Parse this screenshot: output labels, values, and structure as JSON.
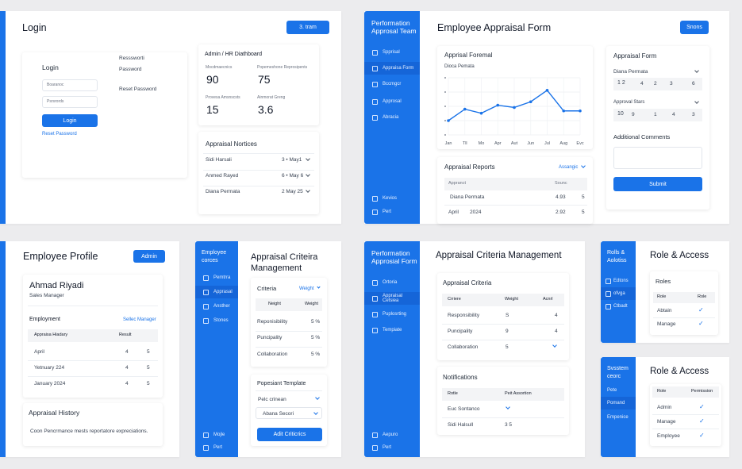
{
  "login": {
    "title": "Login",
    "top_btn": "3. tram",
    "form_title": "Login",
    "user_ph": "Boaranoc",
    "pass_ph": "Psrsrords",
    "login_btn": "Login",
    "reset_link": "Reset Password",
    "side1": "Resssworti",
    "side2": "Password",
    "side3": "Reset Password",
    "dash": {
      "title": "Admin / HR Diathboard",
      "s1l": "Mocdmaecnics",
      "s1v": "90",
      "s2l": "Popemeshone Reprosipents",
      "s2v": "75",
      "s3l": "Provesa Amsnscsts",
      "s3v": "15",
      "s4l": "Ainmorat Greng",
      "s4v": "3.6"
    },
    "notices": {
      "title": "Appraisal Nortices",
      "rows": [
        {
          "name": "Sidi Harsali",
          "date": "3 • May1"
        },
        {
          "name": "Anmed Rayed",
          "date": "6 • May 6"
        },
        {
          "name": "Diana Permata",
          "date": "2 May 25"
        }
      ]
    }
  },
  "appraisal": {
    "side_title": "Performation Approsal Team",
    "nav": [
      "Spprisal",
      "Appraisa Form",
      "Bccmgcr",
      "Approsal",
      "Abracia",
      "Kevios",
      "Pert"
    ],
    "title": "Employee Appraisal Form",
    "top_btn": "Snons",
    "chart_card": {
      "title": "Apprisal Foremal",
      "subtitle": "Dioca Pemata"
    },
    "reports": {
      "title": "Appraisal Reports",
      "filter": "Assangic",
      "col1": "Appranct",
      "col2": "Sounc",
      "rows": [
        {
          "a": "Diana Permata",
          "b": "4.93",
          "c": "5"
        },
        {
          "a": "April",
          "b2": "2024",
          "b": "2.92",
          "c": "5"
        }
      ]
    },
    "form": {
      "title": "Appraisal Form",
      "f1": "Diana Permata",
      "f1v": [
        "1 2",
        "4",
        "2",
        "3",
        "6"
      ],
      "f2": "Approval Stars",
      "f2v": [
        "10",
        "9",
        "1",
        "4",
        "3"
      ],
      "comments": "Additional Comments",
      "submit": "Submit"
    }
  },
  "chart_data": {
    "type": "line",
    "categories": [
      "Jan",
      "Tll",
      "Mo",
      "Apr",
      "Aut",
      "Jun",
      "Jul",
      "Aug",
      "Evc"
    ],
    "values": [
      25,
      45,
      38,
      52,
      48,
      58,
      78,
      42,
      42
    ],
    "ylim": [
      0,
      100
    ],
    "color": "#1a73e8",
    "grid": true
  },
  "profile": {
    "title": "Employee Profile",
    "admin_btn": "Admin",
    "name": "Ahmad Riyadi",
    "role": "Sales Manager",
    "employment": "Employment",
    "emp_link": "Sellec Manager",
    "col1": "Appraisa Hiadary",
    "col2": "Result",
    "rows": [
      {
        "a": "April",
        "b": "4",
        "c": "5"
      },
      {
        "a": "Yetnuary 224",
        "b": "4",
        "c": "5"
      },
      {
        "a": "January 2024",
        "b": "4",
        "c": "5"
      }
    ],
    "history": "Appraisal History",
    "history_text": "Coon Pencrmance mests reportatore expreciations."
  },
  "criteria": {
    "side_title": "Employee corces",
    "nav": [
      "Pemtrra",
      "Apprasal",
      "Ansther",
      "Stones",
      "Mojle",
      "Pert"
    ],
    "title": "Appraisal Criteira Management",
    "card_title": "Criteria",
    "card_link": "Weight",
    "col1": "Neight",
    "col2": "Weight",
    "rows": [
      {
        "a": "Reponisibility",
        "b": "5 %"
      },
      {
        "a": "Puncipality",
        "b": "5 %"
      },
      {
        "a": "Collaboration",
        "b": "5 %"
      }
    ],
    "tpl_title": "Popesiant Template",
    "tpl1": "Pelc crinean",
    "tpl2": "Abana Secori",
    "add_btn": "Adit Criticrics"
  },
  "management": {
    "side_title": "Performation Approsial Form",
    "nav": [
      "Ortoria",
      "Appraisal Cetsiea",
      "Puplosrting",
      "Tempiate",
      "Aepuro",
      "Pert"
    ],
    "title": "Appraisal Criteria Management",
    "card_title": "Appraisal Criteria",
    "col1": "Crriere",
    "col2": "Weight",
    "col3": "Acnrl",
    "rows": [
      {
        "a": "Responsibility",
        "b": "S",
        "c": "4"
      },
      {
        "a": "Puncipality",
        "b": "9",
        "c": "4"
      },
      {
        "a": "Collaboration",
        "b": "5",
        "c": ""
      }
    ],
    "notif_title": "Notifications",
    "ncol1": "Rotle",
    "ncol2": "Peit Assortion",
    "nrows": [
      {
        "a": "Euc Sontanco",
        "b": ""
      },
      {
        "a": "Sidi Halsull",
        "b": "3 5"
      }
    ]
  },
  "access1": {
    "side_title": "Rolls & Aolotiss",
    "nav": [
      "Edtons",
      "ofvga",
      "Ctbadt"
    ],
    "title": "Role & Access",
    "card_title": "Roles",
    "col1": "Role",
    "col2": "Role",
    "rows": [
      "Abtain",
      "Manage"
    ]
  },
  "access2": {
    "side_title": "Svsstem ceorc",
    "nav": [
      "Pete",
      "Pomand",
      "Empenice"
    ],
    "title": "Role & Access",
    "col1": "Role",
    "col2": "Permission",
    "rows": [
      "Admin",
      "Manage",
      "Employee"
    ]
  }
}
